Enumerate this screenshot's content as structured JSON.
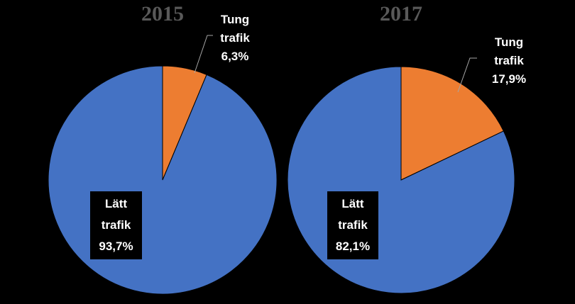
{
  "chart_data": [
    {
      "type": "pie",
      "title": "2015",
      "categories": [
        "Tung trafik",
        "Lätt trafik"
      ],
      "values": [
        6.3,
        93.7
      ],
      "value_labels": [
        "6,3%",
        "93,7%"
      ],
      "colors": [
        "#ed7d31",
        "#4472c4"
      ]
    },
    {
      "type": "pie",
      "title": "2017",
      "categories": [
        "Tung trafik",
        "Lätt trafik"
      ],
      "values": [
        17.9,
        82.1
      ],
      "value_labels": [
        "17,9%",
        "82,1%"
      ],
      "colors": [
        "#ed7d31",
        "#4472c4"
      ]
    }
  ]
}
